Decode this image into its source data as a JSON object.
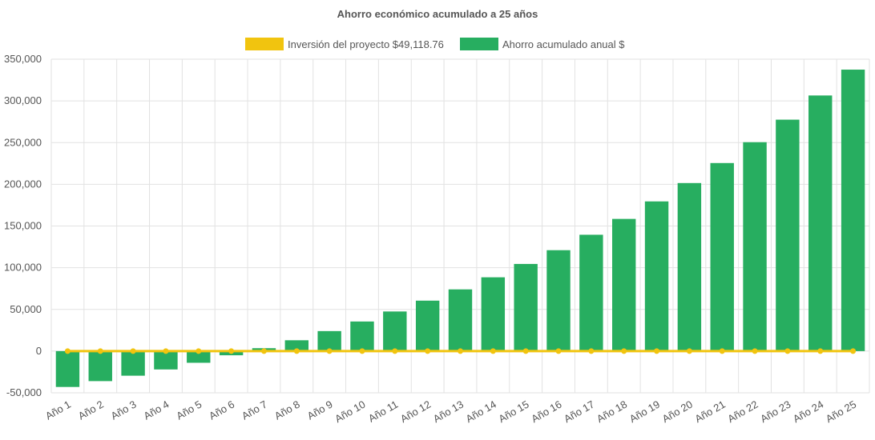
{
  "chart_data": {
    "type": "bar",
    "title": "Ahorro económico acumulado a 25 años",
    "categories": [
      "Año 1",
      "Año 2",
      "Año 3",
      "Año 4",
      "Año 5",
      "Año 6",
      "Año 7",
      "Año 8",
      "Año 9",
      "Año 10",
      "Año 11",
      "Año 12",
      "Año 13",
      "Año 14",
      "Año 15",
      "Año 16",
      "Año 17",
      "Año 18",
      "Año 19",
      "Año 20",
      "Año 21",
      "Año 22",
      "Año 23",
      "Año 24",
      "Año 25"
    ],
    "series": [
      {
        "name": "Inversión del proyecto $49,118.76",
        "type": "line",
        "color": "#f1c40f",
        "values": [
          0,
          0,
          0,
          0,
          0,
          0,
          0,
          0,
          0,
          0,
          0,
          0,
          0,
          0,
          0,
          0,
          0,
          0,
          0,
          0,
          0,
          0,
          0,
          0,
          0
        ]
      },
      {
        "name": "Ahorro acumulado anual $",
        "type": "bar",
        "color": "#27ae60",
        "values": [
          -43000,
          -36000,
          -29500,
          -22000,
          -14000,
          -5000,
          3500,
          13000,
          24000,
          35500,
          47500,
          60500,
          74000,
          88500,
          104500,
          121000,
          139500,
          158500,
          179500,
          201500,
          225500,
          250500,
          277500,
          306500,
          337500
        ]
      }
    ],
    "ylim": [
      -50000,
      350000
    ],
    "yticks": [
      "350,000",
      "300,000",
      "250,000",
      "200,000",
      "150,000",
      "100,000",
      "50,000",
      "0",
      "-50,000"
    ],
    "ytick_values": [
      350000,
      300000,
      250000,
      200000,
      150000,
      100000,
      50000,
      0,
      -50000
    ],
    "grid": true,
    "legend": "top-center"
  }
}
